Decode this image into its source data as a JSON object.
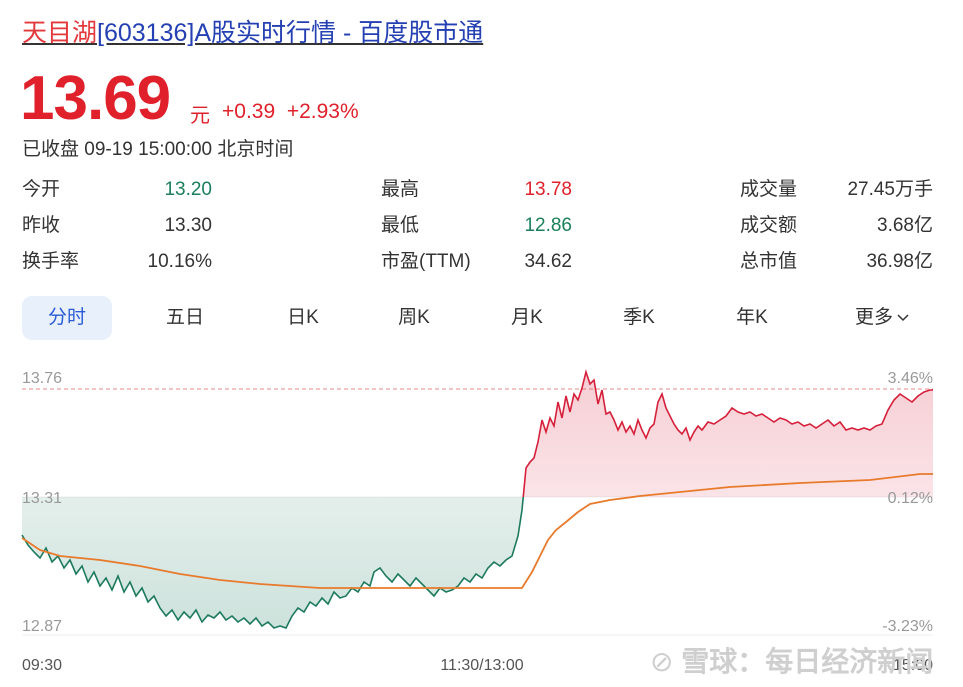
{
  "header": {
    "stock_name": "天目湖",
    "title_rest": "[603136]A股实时行情 - 百度股市通",
    "price": "13.69",
    "unit": "元",
    "change": "+0.39",
    "change_pct": "+2.93%",
    "status": "已收盘 09-19 15:00:00 北京时间"
  },
  "stats": [
    {
      "label": "今开",
      "value": "13.20",
      "color": "green"
    },
    {
      "label": "昨收",
      "value": "13.30",
      "color": "dark"
    },
    {
      "label": "换手率",
      "value": "10.16%",
      "color": "dark"
    },
    {
      "label": "最高",
      "value": "13.78",
      "color": "red"
    },
    {
      "label": "最低",
      "value": "12.86",
      "color": "green"
    },
    {
      "label": "市盈(TTM)",
      "value": "34.62",
      "color": "dark"
    },
    {
      "label": "成交量",
      "value": "27.45万手",
      "color": "dark"
    },
    {
      "label": "成交额",
      "value": "3.68亿",
      "color": "dark"
    },
    {
      "label": "总市值",
      "value": "36.98亿",
      "color": "dark"
    }
  ],
  "tabs": [
    "分时",
    "五日",
    "日K",
    "周K",
    "月K",
    "季K",
    "年K",
    "更多"
  ],
  "active_tab": "分时",
  "chart": {
    "y_left": [
      "13.76",
      "13.31",
      "12.87"
    ],
    "y_right": [
      "3.46%",
      "0.12%",
      "-3.23%"
    ],
    "x_labels": [
      "09:30",
      "11:30/13:00",
      "15:00"
    ],
    "colors": {
      "up": "#d6203b",
      "down": "#1d7a5e",
      "avg": "#e87a2c",
      "ref": "#e88a8a"
    }
  },
  "watermark": "雪球：每日经济新闻"
}
